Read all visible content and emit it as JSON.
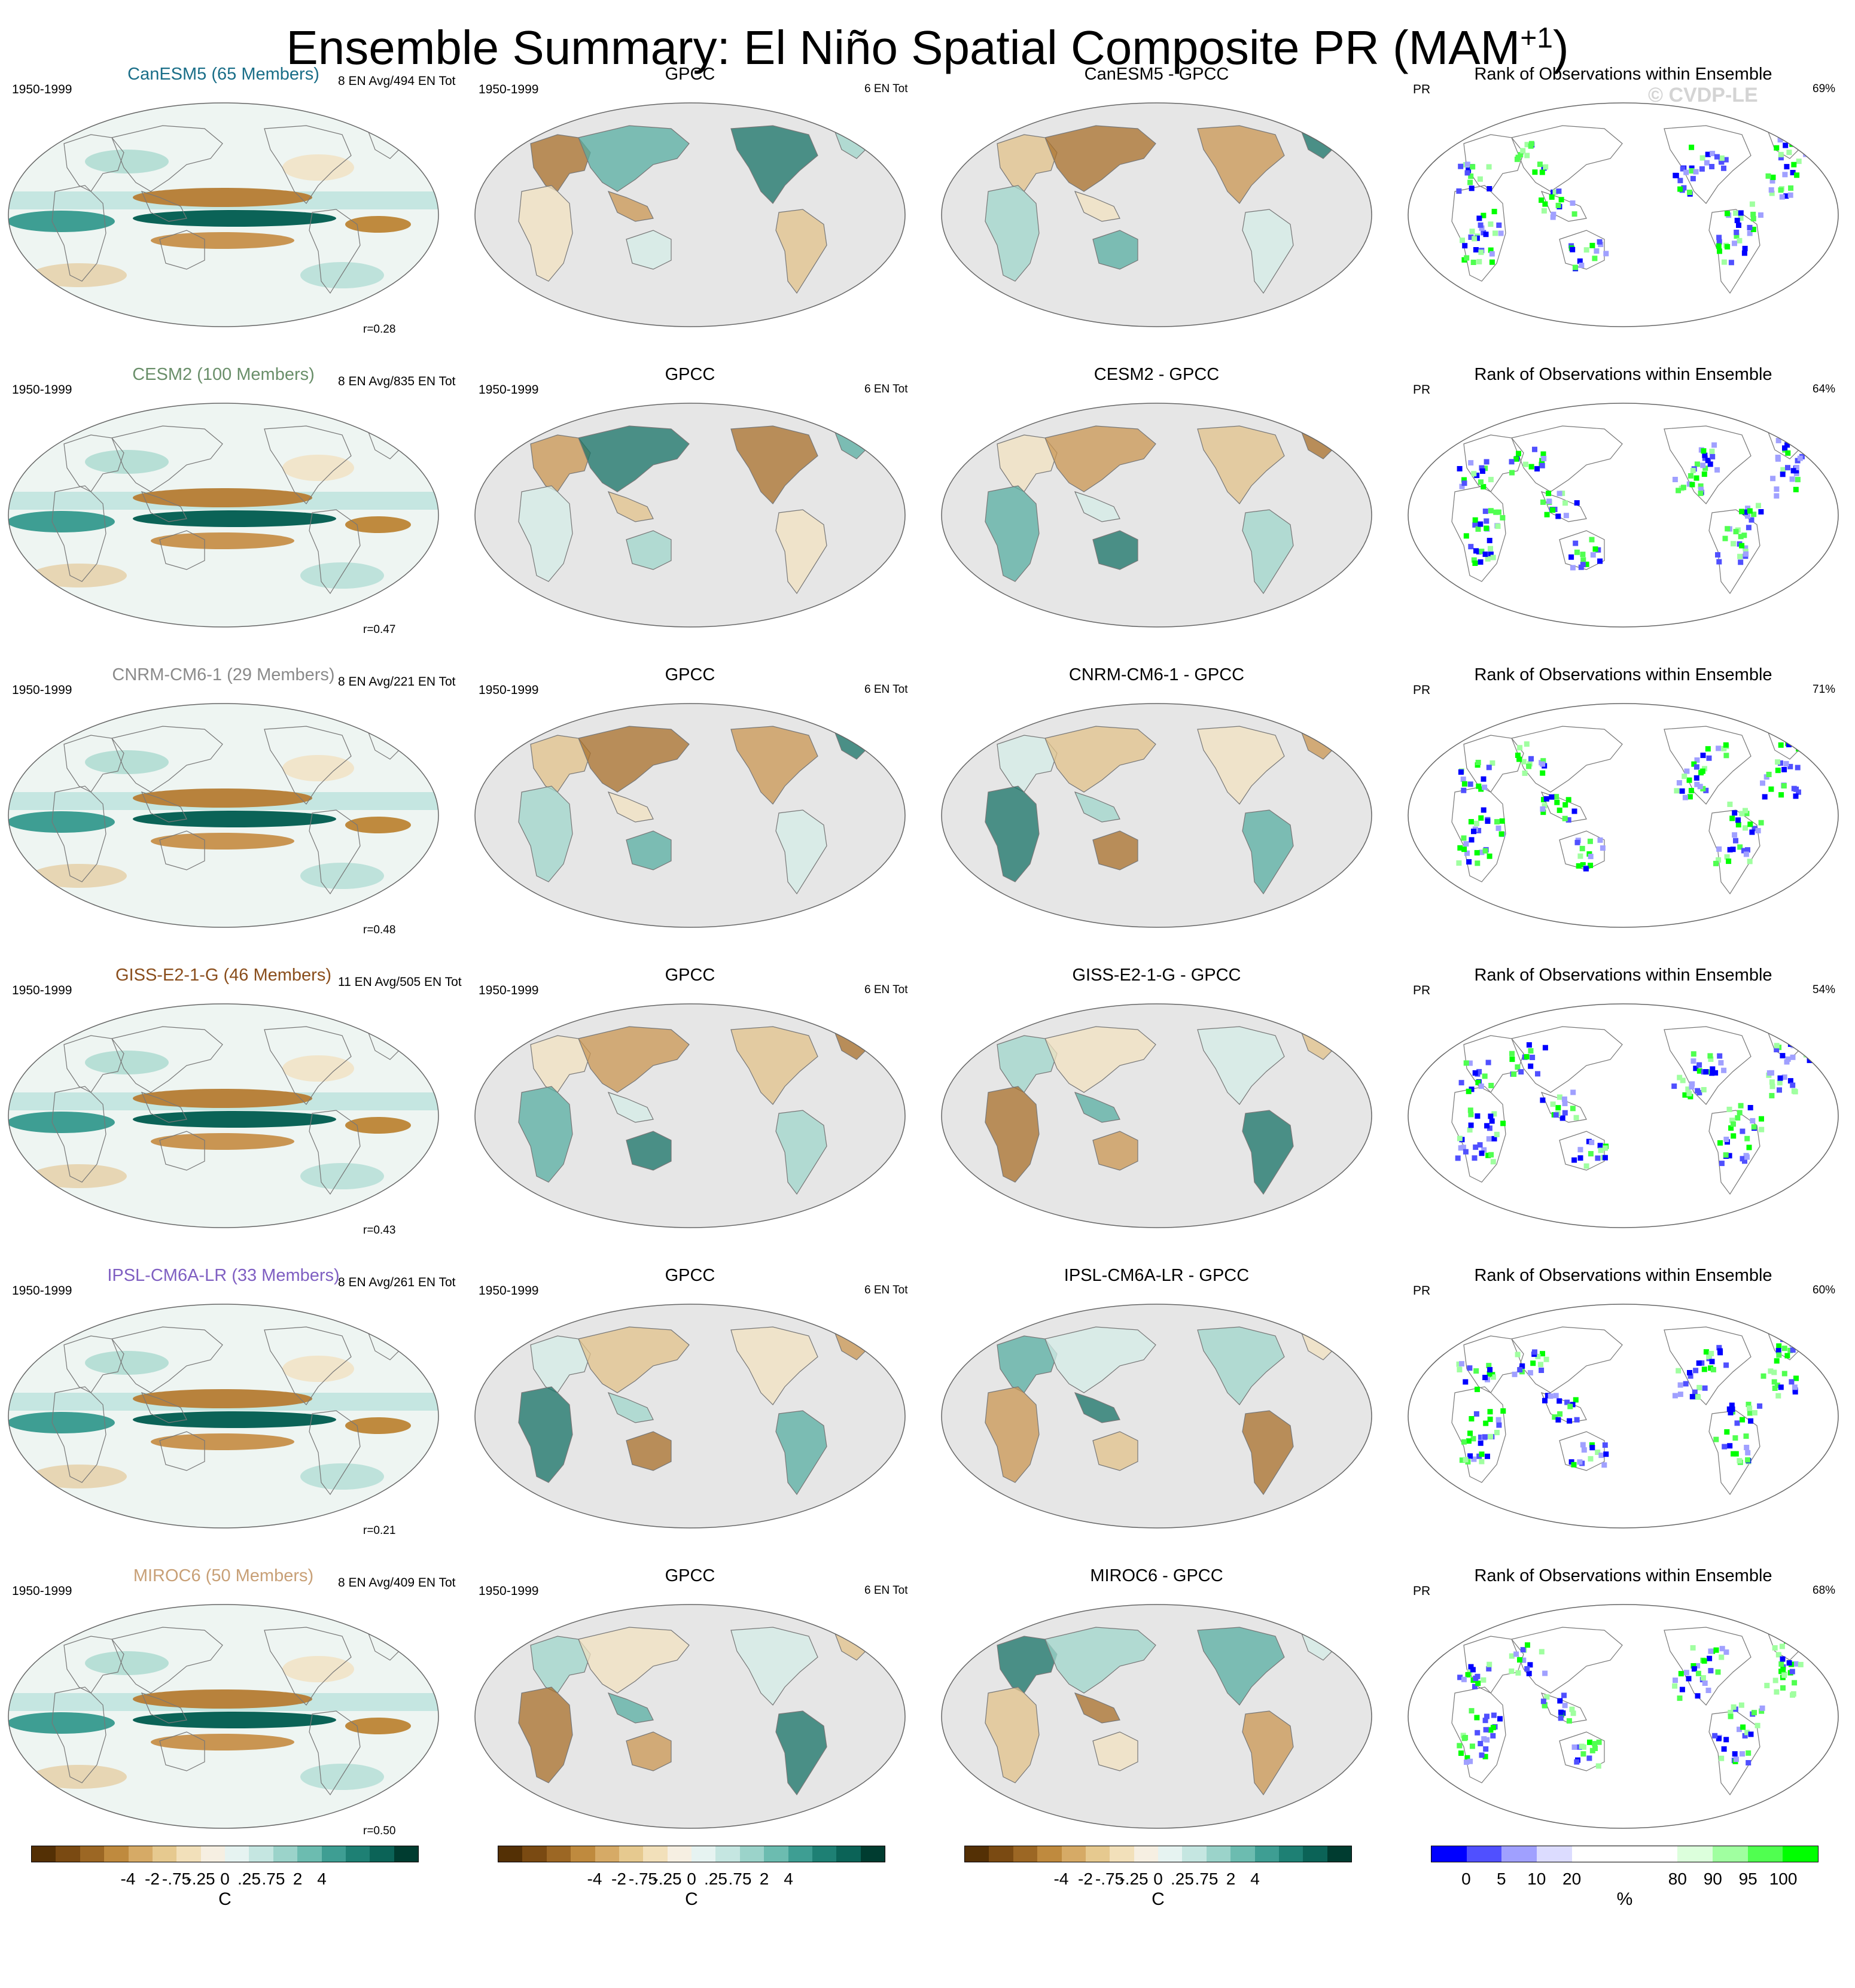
{
  "title": "Ensemble Summary: El Niño Spatial Composite PR (MAM",
  "title_superscript": "+1",
  "title_close": ")",
  "watermark": "© CVDP-LE",
  "period": "1950-1999",
  "obs_name": "GPCC",
  "obs_events": "6 EN Tot",
  "rank_title": "Rank of Observations within Ensemble",
  "rank_var": "PR",
  "rows": [
    {
      "model": "CanESM5 (65 Members)",
      "model_color": "#1a6e88",
      "events": "8 EN Avg/494 EN Tot",
      "r": "r=0.28",
      "diff_title": "CanESM5 - GPCC",
      "rank_pct": "69%"
    },
    {
      "model": "CESM2 (100 Members)",
      "model_color": "#6a8f6a",
      "events": "8 EN Avg/835 EN Tot",
      "r": "r=0.47",
      "diff_title": "CESM2 - GPCC",
      "rank_pct": "64%"
    },
    {
      "model": "CNRM-CM6-1 (29 Members)",
      "model_color": "#8a8a8a",
      "events": "8 EN Avg/221 EN Tot",
      "r": "r=0.48",
      "diff_title": "CNRM-CM6-1 - GPCC",
      "rank_pct": "71%"
    },
    {
      "model": "GISS-E2-1-G (46 Members)",
      "model_color": "#8a4e1c",
      "events": "11 EN Avg/505 EN Tot",
      "r": "r=0.43",
      "diff_title": "GISS-E2-1-G - GPCC",
      "rank_pct": "54%"
    },
    {
      "model": "IPSL-CM6A-LR (33 Members)",
      "model_color": "#7f5fc2",
      "events": "8 EN Avg/261 EN Tot",
      "r": "r=0.21",
      "diff_title": "IPSL-CM6A-LR - GPCC",
      "rank_pct": "60%"
    },
    {
      "model": "MIROC6 (50 Members)",
      "model_color": "#c8a077",
      "events": "8 EN Avg/409 EN Tot",
      "r": "r=0.50",
      "diff_title": "MIROC6 - GPCC",
      "rank_pct": "68%"
    }
  ],
  "colorbars": [
    {
      "id": "model",
      "unit": "C",
      "ticks": [
        "-4",
        "-2",
        "-.75",
        "-.25",
        "0",
        ".25",
        ".75",
        "2",
        "4"
      ],
      "colors": [
        "#543005",
        "#7a4a12",
        "#9c6724",
        "#bf8a3e",
        "#d6aa66",
        "#e6c98f",
        "#f2e0ba",
        "#f6efe2",
        "#e6f3f1",
        "#c5e6e1",
        "#9bd3ca",
        "#6cbcb0",
        "#3e9e93",
        "#1e8074",
        "#0b6357",
        "#003c30"
      ]
    },
    {
      "id": "obs",
      "unit": "C",
      "ticks": [
        "-4",
        "-2",
        "-.75",
        "-.25",
        "0",
        ".25",
        ".75",
        "2",
        "4"
      ],
      "colors": [
        "#543005",
        "#7a4a12",
        "#9c6724",
        "#bf8a3e",
        "#d6aa66",
        "#e6c98f",
        "#f2e0ba",
        "#f6efe2",
        "#e6f3f1",
        "#c5e6e1",
        "#9bd3ca",
        "#6cbcb0",
        "#3e9e93",
        "#1e8074",
        "#0b6357",
        "#003c30"
      ]
    },
    {
      "id": "diff",
      "unit": "C",
      "ticks": [
        "-4",
        "-2",
        "-.75",
        "-.25",
        "0",
        ".25",
        ".75",
        "2",
        "4"
      ],
      "colors": [
        "#543005",
        "#7a4a12",
        "#9c6724",
        "#bf8a3e",
        "#d6aa66",
        "#e6c98f",
        "#f2e0ba",
        "#f6efe2",
        "#e6f3f1",
        "#c5e6e1",
        "#9bd3ca",
        "#6cbcb0",
        "#3e9e93",
        "#1e8074",
        "#0b6357",
        "#003c30"
      ]
    },
    {
      "id": "rank",
      "unit": "%",
      "ticks": [
        "0",
        "5",
        "10",
        "20",
        "80",
        "90",
        "95",
        "100"
      ],
      "colors": [
        "#0000ff",
        "#5050ff",
        "#a0a0ff",
        "#dcdcff",
        "#ffffff",
        "#ffffff",
        "#ffffff",
        "#dcffdc",
        "#a0ffa0",
        "#50ff50",
        "#00ff00"
      ]
    }
  ]
}
